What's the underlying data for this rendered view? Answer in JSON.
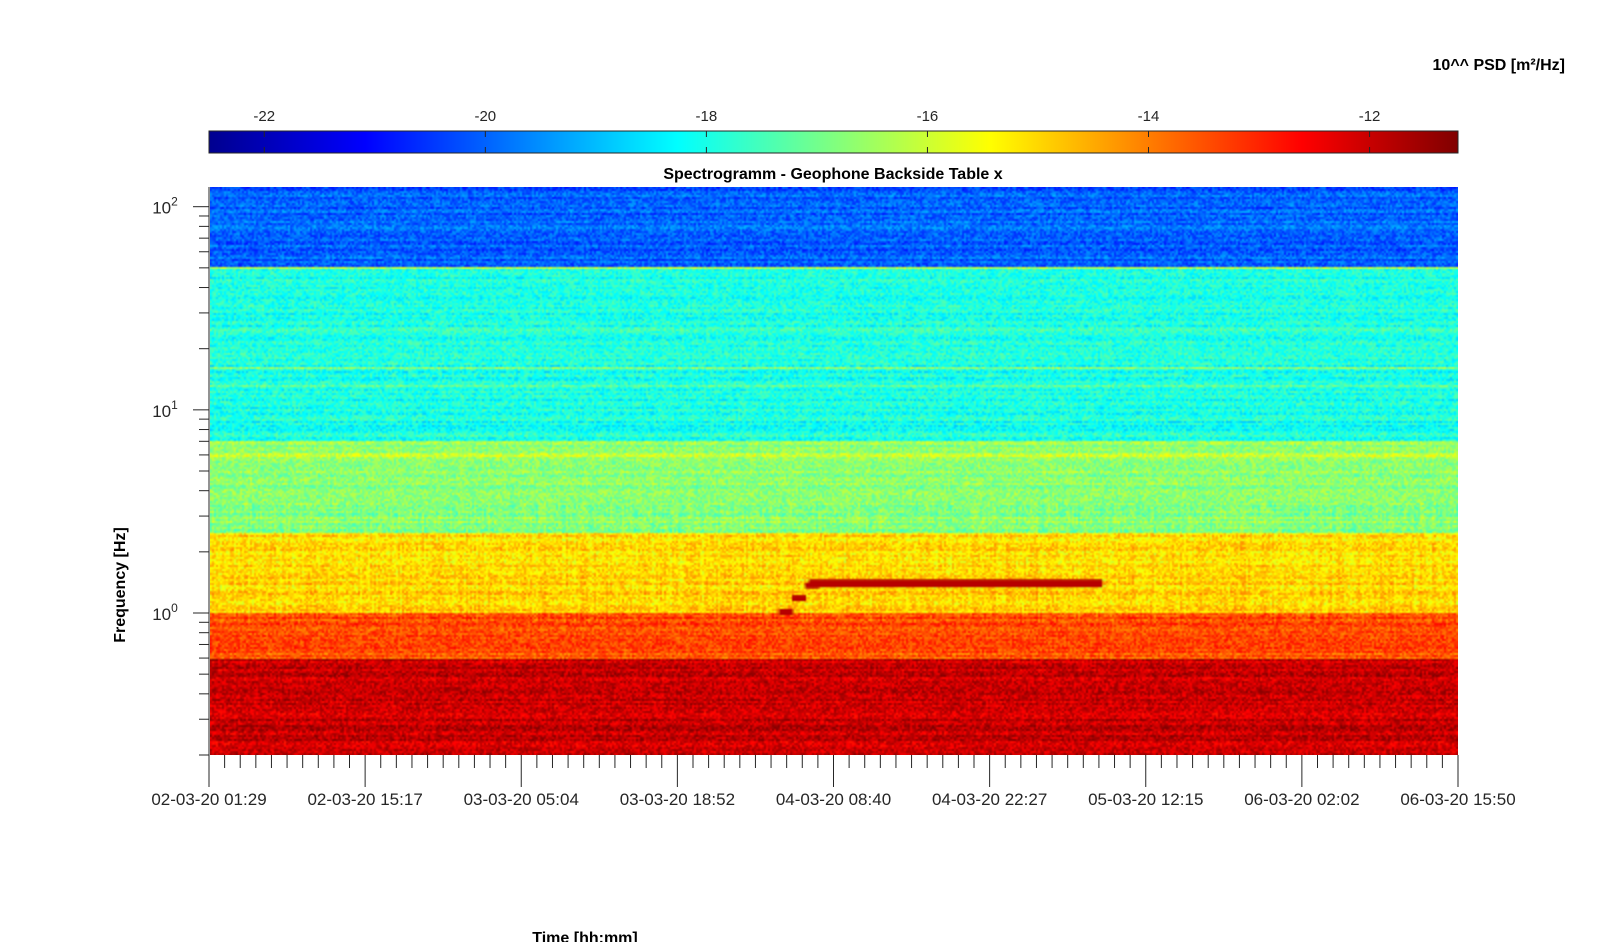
{
  "chart_data": {
    "type": "heatmap",
    "title": "Spectrogramm - Geophone Backside Table x",
    "xlabel": "Time [hh:mm]",
    "ylabel": "Frequency [Hz]",
    "yscale": "log",
    "ylim": [
      0.2,
      125
    ],
    "colorbar": {
      "label": "10^^ PSD [m²/Hz]",
      "location": "top",
      "colormap": "jet",
      "clim": [
        -22.5,
        -11.2
      ],
      "ticks": [
        -22,
        -20,
        -18,
        -16,
        -14,
        -12
      ],
      "tick_labels": [
        "-22",
        "-20",
        "-18",
        "-16",
        "-14",
        "-12"
      ]
    },
    "x_tick_labels": [
      "02-03-20 01:29",
      "02-03-20 15:17",
      "03-03-20 05:04",
      "03-03-20 18:52",
      "04-03-20 08:40",
      "04-03-20 22:27",
      "05-03-20 12:15",
      "06-03-20 02:02",
      "06-03-20 15:50"
    ],
    "y_tick_labels": [
      {
        "base": "10",
        "exp": "0",
        "value": 1
      },
      {
        "base": "10",
        "exp": "1",
        "value": 10
      },
      {
        "base": "10",
        "exp": "2",
        "value": 100
      }
    ],
    "levels": [
      {
        "freq_range": [
          50,
          125
        ],
        "log10_psd": -20.0
      },
      {
        "freq_range": [
          7,
          50
        ],
        "log10_psd": -18.0
      },
      {
        "freq_range": [
          2.5,
          7
        ],
        "log10_psd": -16.7
      },
      {
        "freq_range": [
          1.0,
          2.5
        ],
        "log10_psd": -15.0
      },
      {
        "freq_range": [
          0.6,
          1.0
        ],
        "log10_psd": -13.5
      },
      {
        "freq_range": [
          0.2,
          0.6
        ],
        "log10_psd": -12.0
      }
    ],
    "narrowband_lines_hz": [
      50,
      25,
      16,
      13,
      6
    ],
    "annotations": [
      {
        "type": "tonal_line",
        "x_start": "04-03-20 06:00",
        "x_end": "05-03-20 08:40",
        "frequency_hz": 1.4,
        "log10_psd": -11.8
      }
    ]
  }
}
